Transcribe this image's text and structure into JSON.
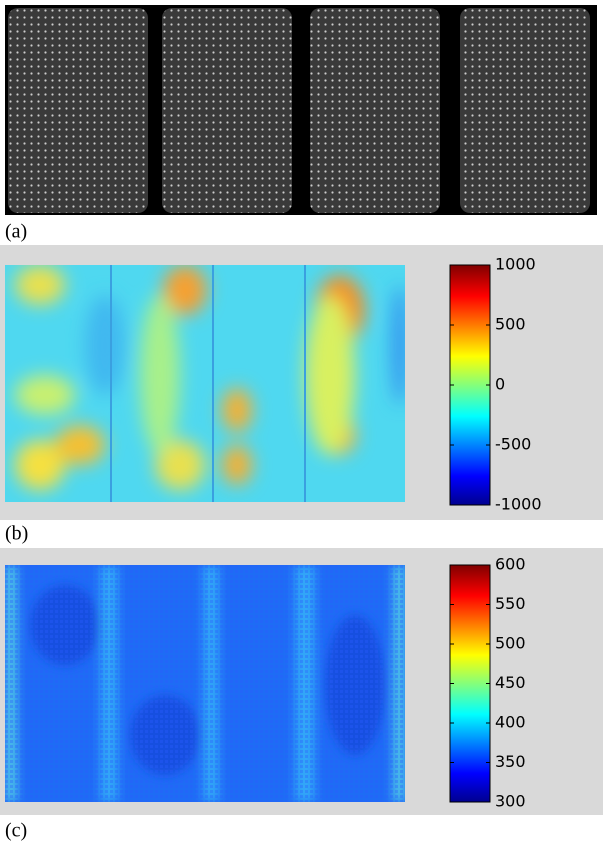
{
  "panels": [
    {
      "label": "(a)"
    },
    {
      "label": "(b)",
      "colorbar": {
        "lim": [
          -1000,
          1000
        ],
        "ticks": [
          1000,
          500,
          0,
          -500,
          -1000
        ]
      }
    },
    {
      "label": "(c)",
      "colorbar": {
        "lim": [
          300,
          600
        ],
        "ticks": [
          600,
          550,
          500,
          450,
          400,
          350,
          300
        ]
      }
    }
  ]
}
